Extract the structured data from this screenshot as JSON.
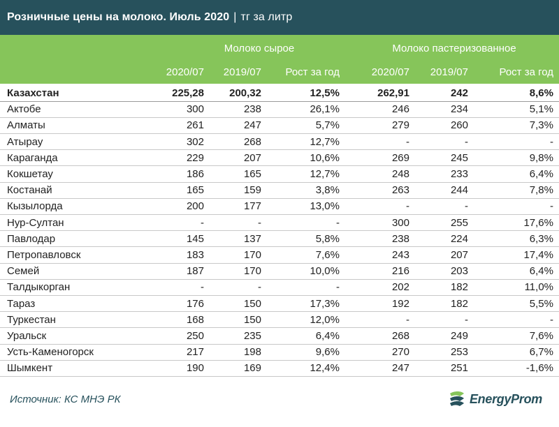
{
  "title": {
    "main": "Розничные цены на молоко. Июль 2020",
    "separator": "|",
    "unit": "тг за литр"
  },
  "chart_data": {
    "type": "table",
    "title": "Розничные цены на молоко. Июль 2020",
    "unit": "тг за литр",
    "groups": [
      "Молоко сырое",
      "Молоко пастеризованное"
    ],
    "columns": [
      "2020/07",
      "2019/07",
      "Рост за год",
      "2020/07",
      "2019/07",
      "Рост за год"
    ],
    "rows": [
      {
        "region": "Казахстан",
        "total": true,
        "values": [
          "225,28",
          "200,32",
          "12,5%",
          "262,91",
          "242",
          "8,6%"
        ]
      },
      {
        "region": "Актобе",
        "values": [
          "300",
          "238",
          "26,1%",
          "246",
          "234",
          "5,1%"
        ]
      },
      {
        "region": "Алматы",
        "values": [
          "261",
          "247",
          "5,7%",
          "279",
          "260",
          "7,3%"
        ]
      },
      {
        "region": "Атырау",
        "values": [
          "302",
          "268",
          "12,7%",
          "-",
          "-",
          "-"
        ]
      },
      {
        "region": "Караганда",
        "values": [
          "229",
          "207",
          "10,6%",
          "269",
          "245",
          "9,8%"
        ]
      },
      {
        "region": "Кокшетау",
        "values": [
          "186",
          "165",
          "12,7%",
          "248",
          "233",
          "6,4%"
        ]
      },
      {
        "region": "Костанай",
        "values": [
          "165",
          "159",
          "3,8%",
          "263",
          "244",
          "7,8%"
        ]
      },
      {
        "region": "Кызылорда",
        "values": [
          "200",
          "177",
          "13,0%",
          "-",
          "-",
          "-"
        ]
      },
      {
        "region": "Нур-Султан",
        "values": [
          "-",
          "-",
          "-",
          "300",
          "255",
          "17,6%"
        ]
      },
      {
        "region": "Павлодар",
        "values": [
          "145",
          "137",
          "5,8%",
          "238",
          "224",
          "6,3%"
        ]
      },
      {
        "region": "Петропавловск",
        "values": [
          "183",
          "170",
          "7,6%",
          "243",
          "207",
          "17,4%"
        ]
      },
      {
        "region": "Семей",
        "values": [
          "187",
          "170",
          "10,0%",
          "216",
          "203",
          "6,4%"
        ]
      },
      {
        "region": "Талдыкорган",
        "values": [
          "-",
          "-",
          "-",
          "202",
          "182",
          "11,0%"
        ]
      },
      {
        "region": "Тараз",
        "values": [
          "176",
          "150",
          "17,3%",
          "192",
          "182",
          "5,5%"
        ]
      },
      {
        "region": "Туркестан",
        "values": [
          "168",
          "150",
          "12,0%",
          "-",
          "-",
          "-"
        ]
      },
      {
        "region": "Уральск",
        "values": [
          "250",
          "235",
          "6,4%",
          "268",
          "249",
          "7,6%"
        ]
      },
      {
        "region": "Усть-Каменогорск",
        "values": [
          "217",
          "198",
          "9,6%",
          "270",
          "253",
          "6,7%"
        ]
      },
      {
        "region": "Шымкент",
        "values": [
          "190",
          "169",
          "12,4%",
          "247",
          "251",
          "-1,6%"
        ]
      }
    ]
  },
  "footer": {
    "source": "Источник: КС МНЭ РК",
    "brand": "EnergyProm"
  },
  "colors": {
    "title_bg": "#27515c",
    "header_bg": "#86c55a",
    "brand": "#27515c"
  }
}
